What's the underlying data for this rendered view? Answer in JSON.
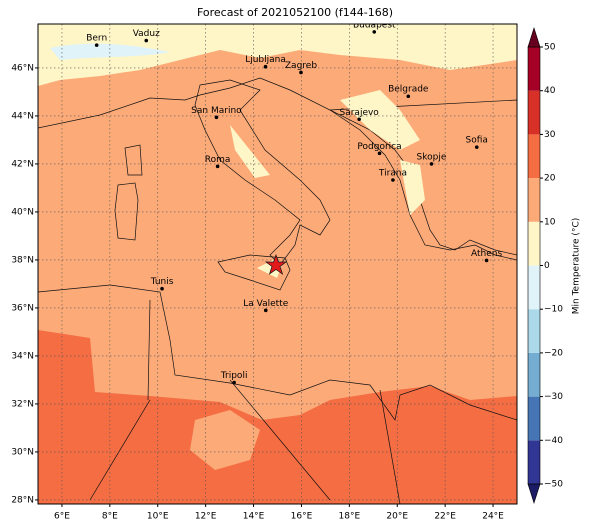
{
  "map": {
    "title": "Forecast of 2021052100 (f144-168)",
    "xlim": [
      5,
      25
    ],
    "ylim": [
      27.83,
      47.83
    ],
    "xticks": [
      {
        "value": 6,
        "label": "6°E"
      },
      {
        "value": 8,
        "label": "8°E"
      },
      {
        "value": 10,
        "label": "10°E"
      },
      {
        "value": 12,
        "label": "12°E"
      },
      {
        "value": 14,
        "label": "14°E"
      },
      {
        "value": 16,
        "label": "16°E"
      },
      {
        "value": 18,
        "label": "18°E"
      },
      {
        "value": 20,
        "label": "20°E"
      },
      {
        "value": 22,
        "label": "22°E"
      },
      {
        "value": 24,
        "label": "24°E"
      }
    ],
    "yticks": [
      {
        "value": 28,
        "label": "28°N"
      },
      {
        "value": 30,
        "label": "30°N"
      },
      {
        "value": 32,
        "label": "32°N"
      },
      {
        "value": 34,
        "label": "34°N"
      },
      {
        "value": 36,
        "label": "36°N"
      },
      {
        "value": 38,
        "label": "38°N"
      },
      {
        "value": 40,
        "label": "40°N"
      },
      {
        "value": 42,
        "label": "42°N"
      },
      {
        "value": 44,
        "label": "44°N"
      },
      {
        "value": 46,
        "label": "46°N"
      }
    ],
    "grid": true,
    "cities": [
      {
        "name": "Bern",
        "lon": 7.45,
        "lat": 46.95
      },
      {
        "name": "Vaduz",
        "lon": 9.52,
        "lat": 47.14
      },
      {
        "name": "Budapest",
        "lon": 19.04,
        "lat": 47.5
      },
      {
        "name": "Ljubljana",
        "lon": 14.5,
        "lat": 46.05
      },
      {
        "name": "Zagreb",
        "lon": 15.98,
        "lat": 45.81
      },
      {
        "name": "Belgrade",
        "lon": 20.46,
        "lat": 44.82
      },
      {
        "name": "San Marino",
        "lon": 12.45,
        "lat": 43.94
      },
      {
        "name": "Sarajevo",
        "lon": 18.41,
        "lat": 43.86
      },
      {
        "name": "Sofia",
        "lon": 23.32,
        "lat": 42.7
      },
      {
        "name": "Podgorica",
        "lon": 19.26,
        "lat": 42.44
      },
      {
        "name": "Skopje",
        "lon": 21.43,
        "lat": 42.0
      },
      {
        "name": "Roma",
        "lon": 12.5,
        "lat": 41.9
      },
      {
        "name": "Tirana",
        "lon": 19.82,
        "lat": 41.33
      },
      {
        "name": "Athens",
        "lon": 23.73,
        "lat": 37.98
      },
      {
        "name": "Tunis",
        "lon": 10.18,
        "lat": 36.8
      },
      {
        "name": "La Valette",
        "lon": 14.51,
        "lat": 35.9
      },
      {
        "name": "Tripoli",
        "lon": 13.19,
        "lat": 32.89
      }
    ],
    "colorbar": {
      "label": "Min Temperature (°C)",
      "ticks": [
        {
          "value": -50,
          "label": "−50"
        },
        {
          "value": -40,
          "label": "−40"
        },
        {
          "value": -30,
          "label": "−30"
        },
        {
          "value": -20,
          "label": "−20"
        },
        {
          "value": -10,
          "label": "−10"
        },
        0,
        10,
        20,
        30,
        40,
        50
      ],
      "colors": [
        "#313695",
        "#4575b4",
        "#74add1",
        "#abd9e9",
        "#e0f3f8",
        "#fff6c8",
        "#fcaa78",
        "#f46d43",
        "#d73027",
        "#a50026"
      ],
      "under": "#1b1b66",
      "over": "#67001f"
    }
  }
}
